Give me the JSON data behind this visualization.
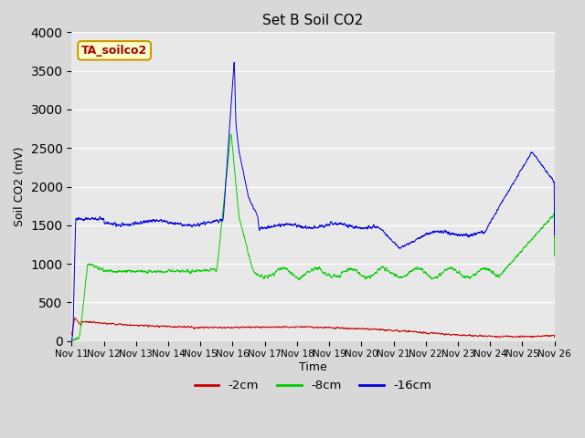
{
  "title": "Set B Soil CO2",
  "ylabel": "Soil CO2 (mV)",
  "xlabel": "Time",
  "ylim": [
    0,
    4000
  ],
  "yticks": [
    0,
    500,
    1000,
    1500,
    2000,
    2500,
    3000,
    3500,
    4000
  ],
  "xtick_labels": [
    "Nov 11",
    "Nov 12",
    "Nov 13",
    "Nov 14",
    "Nov 15",
    "Nov 16",
    "Nov 17",
    "Nov 18",
    "Nov 19",
    "Nov 20",
    "Nov 21",
    "Nov 22",
    "Nov 23",
    "Nov 24",
    "Nov 25",
    "Nov 26"
  ],
  "colors": {
    "red": "#cc0000",
    "green": "#00cc00",
    "blue": "#0000dd"
  },
  "legend_labels": [
    "-2cm",
    "-8cm",
    "-16cm"
  ],
  "annotation_box": "TA_soilco2",
  "axes_facecolor": "#e8e8e8",
  "fig_facecolor": "#d8d8d8"
}
